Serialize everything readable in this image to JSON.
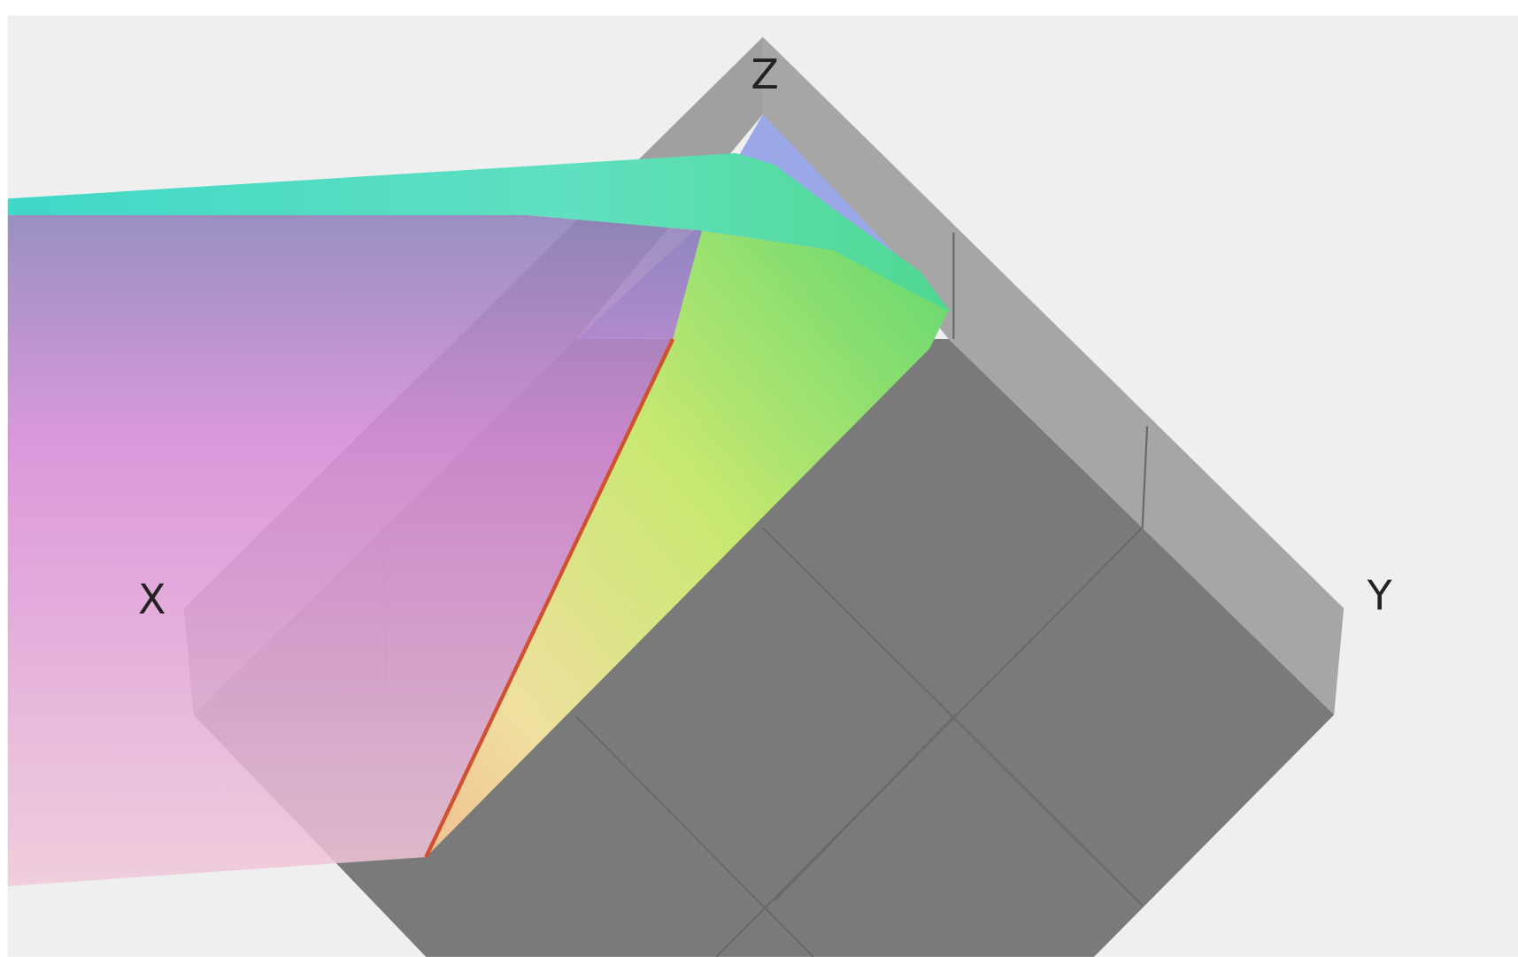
{
  "axes": {
    "z": "Z",
    "x": "X",
    "y": "Y"
  }
}
